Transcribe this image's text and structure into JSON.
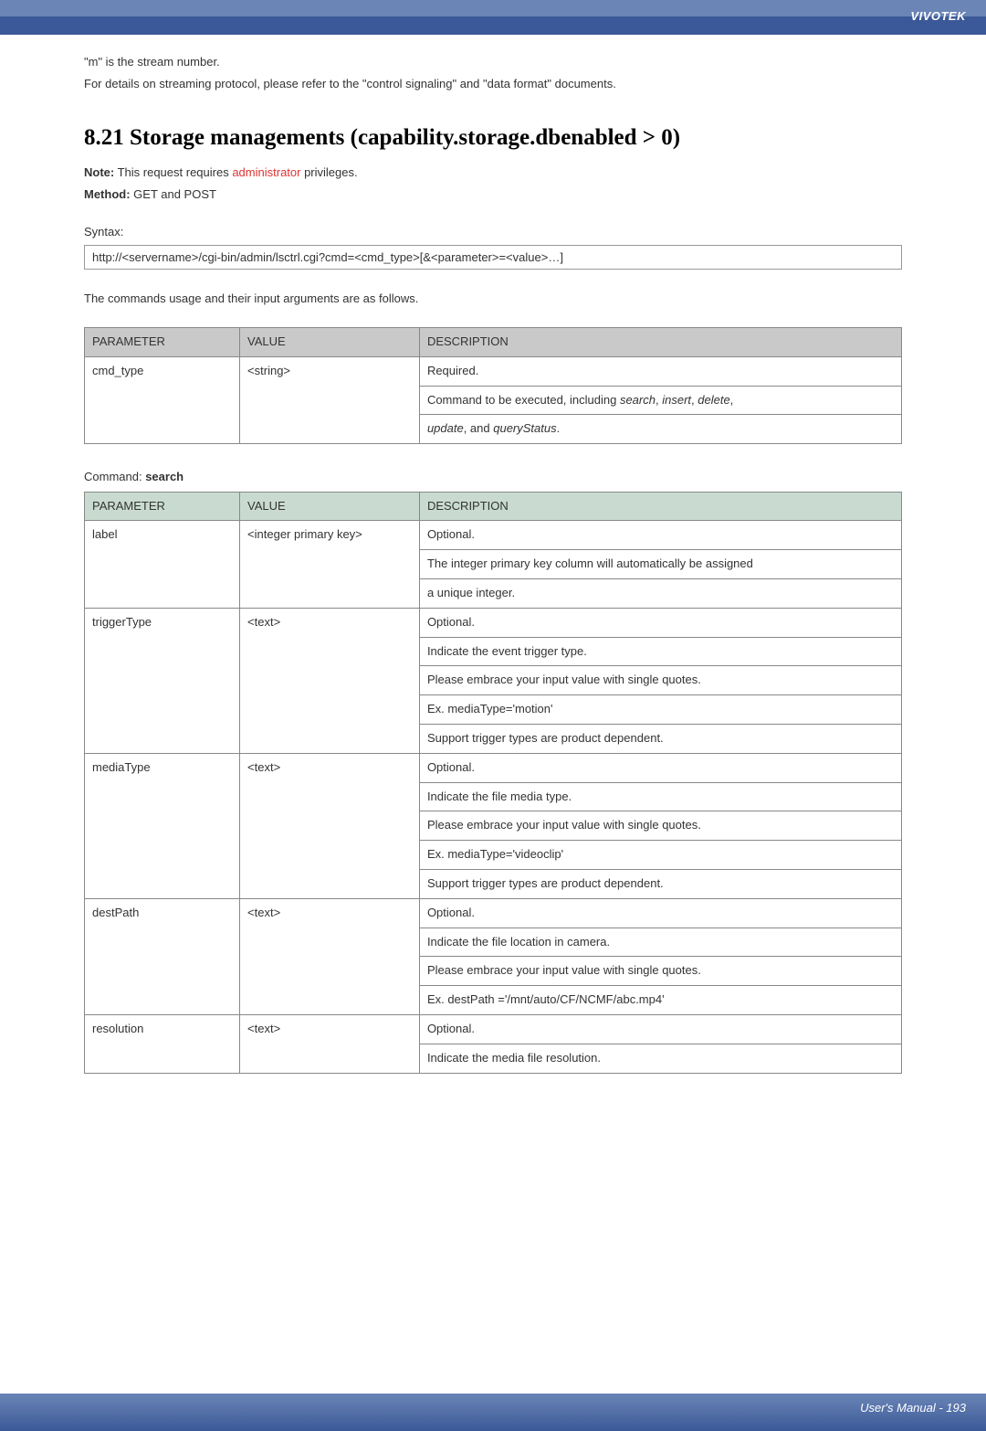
{
  "brand": "VIVOTEK",
  "intro": {
    "line1": "\"m\" is the stream number.",
    "line2": "For details on streaming protocol, please refer to the \"control signaling\" and \"data format\" documents."
  },
  "heading": "8.21 Storage managements (capability.storage.dbenabled > 0)",
  "note_prefix": "Note:",
  "note_text_before": " This request requires ",
  "note_red": "administrator",
  "note_text_after": " privileges.",
  "method_prefix": "Method:",
  "method_text": " GET and POST",
  "syntax_label": "Syntax:",
  "syntax_box": "http://<servername>/cgi-bin/admin/lsctrl.cgi?cmd=<cmd_type>[&<parameter>=<value>…]",
  "usage_text": "The commands usage and their input arguments are as follows.",
  "table1": {
    "h1": "PARAMETER",
    "h2": "VALUE",
    "h3": "DESCRIPTION",
    "r1c1": "cmd_type",
    "r1c2": "<string>",
    "r1c3a": "Required.",
    "r1c3b_pre": "Command to be executed, including ",
    "r1c3b_i1": "search",
    "r1c3b_s1": ", ",
    "r1c3b_i2": "insert",
    "r1c3b_s2": ", ",
    "r1c3b_i3": "delete",
    "r1c3b_s3": ",",
    "r1c3c_i1": "update",
    "r1c3c_s1": ", and ",
    "r1c3c_i2": "queryStatus",
    "r1c3c_s2": "."
  },
  "cmd_prefix": "Command: ",
  "cmd_name": "search",
  "table2": {
    "h1": "PARAMETER",
    "h2": "VALUE",
    "h3": "DESCRIPTION",
    "rows": [
      {
        "p": "label",
        "v": "<integer primary key>",
        "d": [
          "Optional.",
          "The integer primary key column will automatically be assigned",
          "a unique integer."
        ]
      },
      {
        "p": "triggerType",
        "v": "<text>",
        "d": [
          "Optional.",
          "Indicate the event trigger type.",
          "Please embrace your input value with single quotes.",
          "Ex. mediaType='motion'",
          "Support trigger types are product dependent."
        ]
      },
      {
        "p": "mediaType",
        "v": "<text>",
        "d": [
          "Optional.",
          "Indicate the file media type.",
          "Please embrace your input value with single quotes.",
          "Ex. mediaType='videoclip'",
          "Support trigger types are product dependent."
        ]
      },
      {
        "p": "destPath",
        "v": "<text>",
        "d": [
          "Optional.",
          "Indicate the file location in camera.",
          "Please embrace your input value with single quotes.",
          "Ex. destPath ='/mnt/auto/CF/NCMF/abc.mp4'"
        ]
      },
      {
        "p": "resolution",
        "v": "<text>",
        "d": [
          "Optional.",
          "Indicate the media file resolution."
        ]
      }
    ]
  },
  "footer": "User's Manual - 193"
}
